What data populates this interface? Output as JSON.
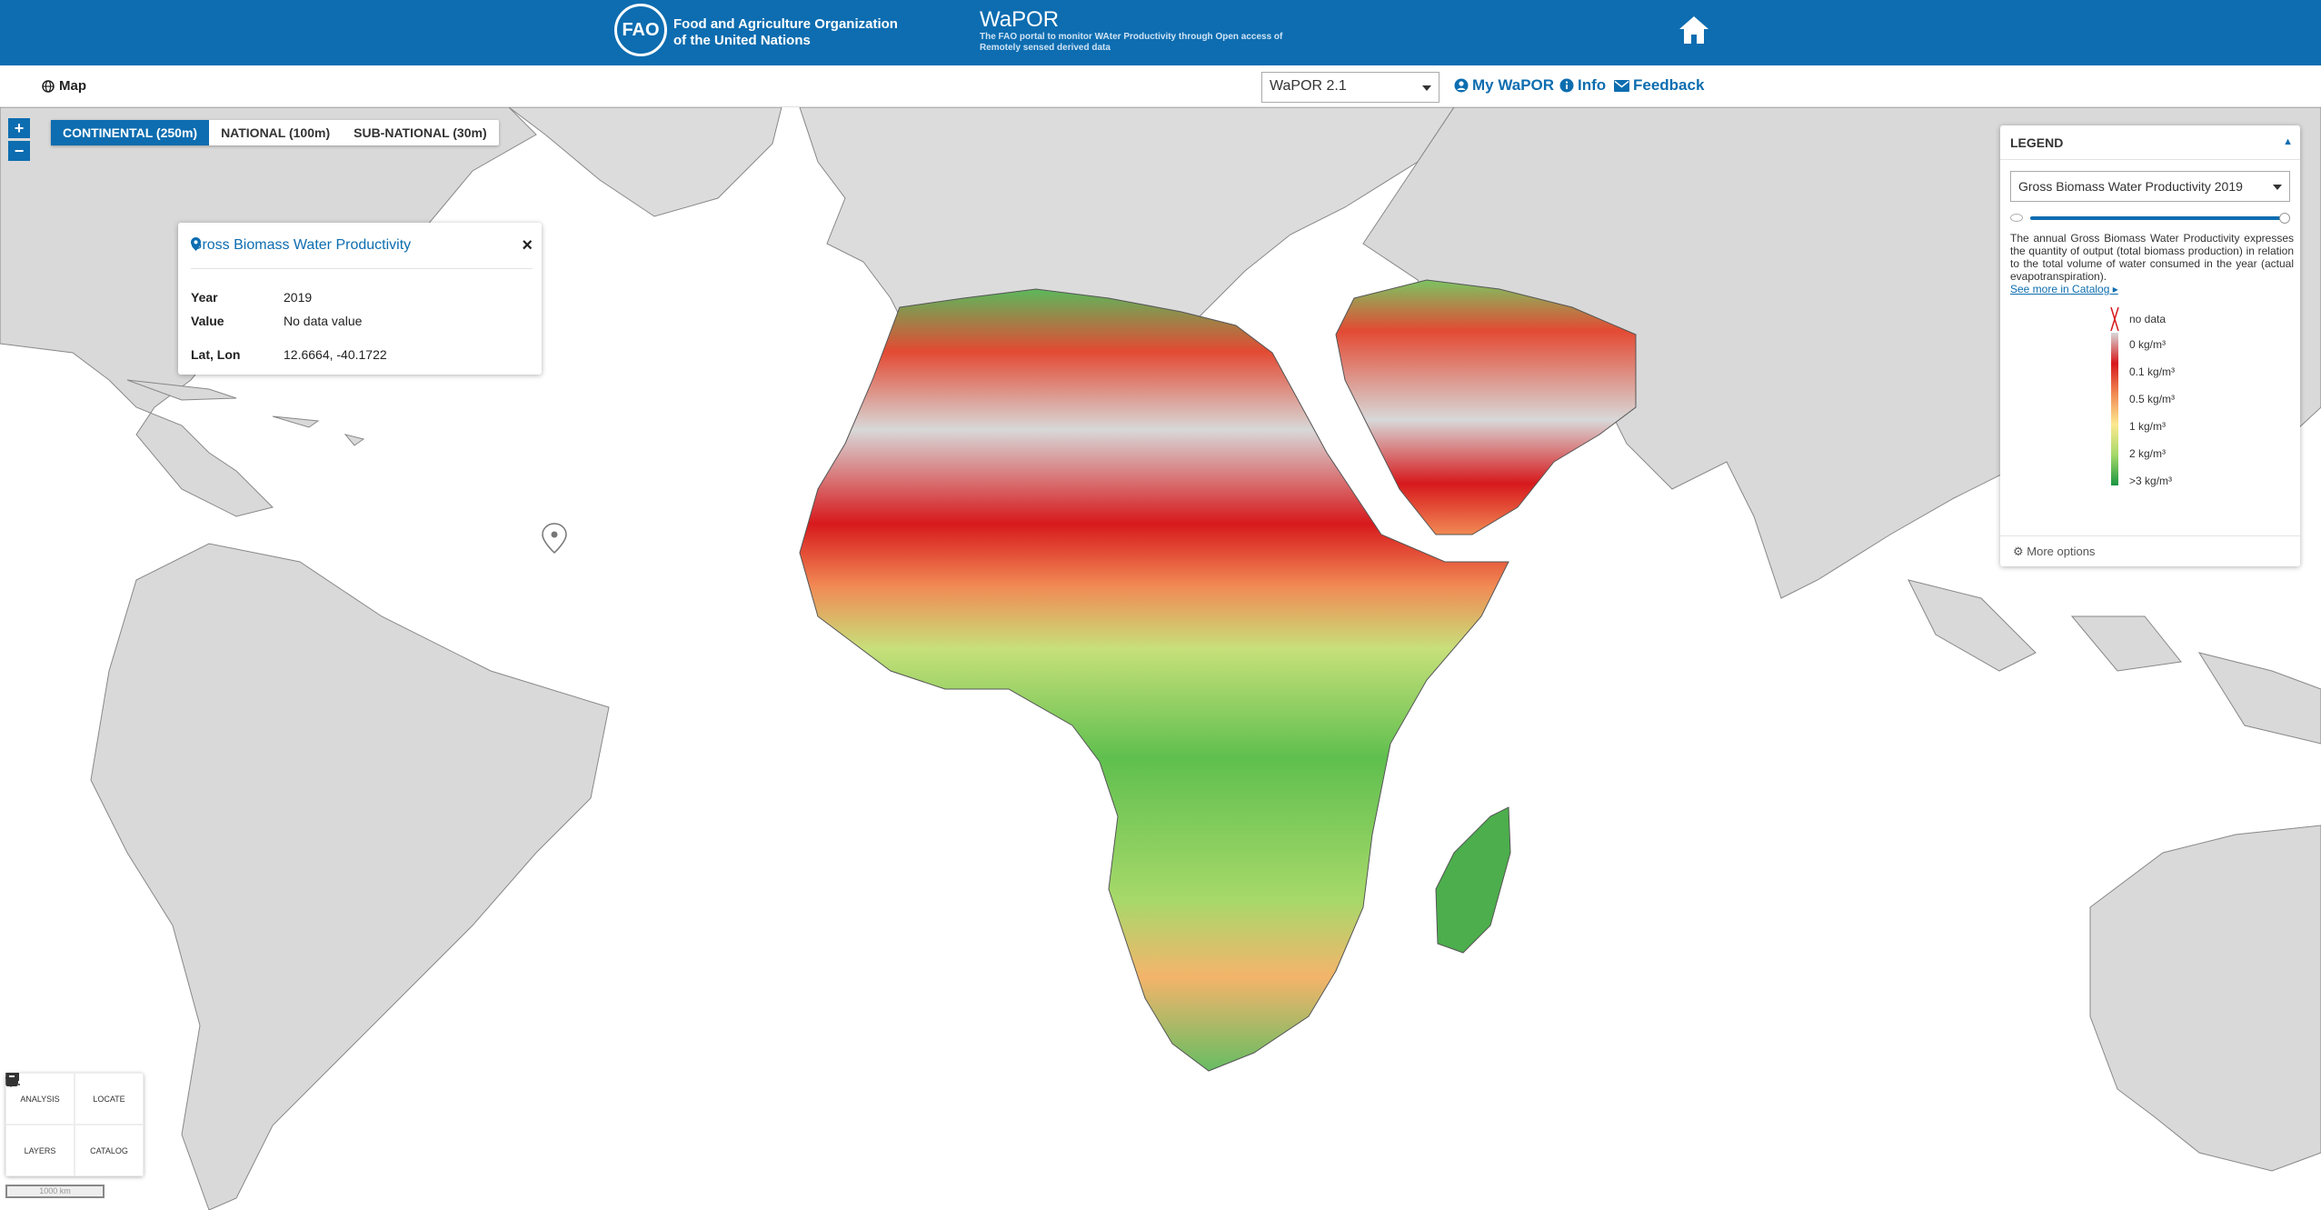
{
  "header": {
    "org_name_line1": "Food and Agriculture Organization",
    "org_name_line2": "of the United Nations",
    "logo_text": "FAO",
    "app_title": "WaPOR",
    "app_subtitle": "The FAO portal to monitor WAter Productivity through Open access of Remotely sensed derived data",
    "brand_color": "#0d6db0"
  },
  "nav": {
    "map_label": "Map",
    "version_value": "WaPOR 2.1",
    "my_wapor": "My WaPOR",
    "info": "Info",
    "feedback": "Feedback"
  },
  "map": {
    "zoom_in": "+",
    "zoom_out": "−",
    "resolution_tabs": [
      {
        "label": "CONTINENTAL (250m)",
        "active": true
      },
      {
        "label": "NATIONAL (100m)",
        "active": false
      },
      {
        "label": "SUB-NATIONAL (30m)",
        "active": false
      }
    ],
    "scale_label": "1000 km"
  },
  "popup": {
    "title": "Gross Biomass Water Productivity",
    "close": "×",
    "rows": [
      {
        "key": "Year",
        "value": "2019"
      },
      {
        "key": "Value",
        "value": "No data value"
      },
      {
        "key": "Lat, Lon",
        "value": "12.6664, -40.1722"
      }
    ]
  },
  "legend": {
    "header": "LEGEND",
    "layer_value": "Gross Biomass Water Productivity 2019",
    "description": "The annual Gross Biomass Water Productivity expresses the quantity of output (total biomass production) in relation to the total volume of water consumed in the year (actual evapotranspiration).",
    "catalog_link": "See more in Catalog",
    "opacity_percent": 100,
    "classes": [
      "no data",
      "0 kg/m³",
      "0.1 kg/m³",
      "0.5 kg/m³",
      "1 kg/m³",
      "2 kg/m³",
      ">3 kg/m³"
    ],
    "ramp_colors": [
      "#d8d8d8",
      "#d7191c",
      "#f18a54",
      "#fde98f",
      "#a6d96a",
      "#1a9641"
    ],
    "more_options": "More options"
  },
  "tools": [
    {
      "label": "ANALYSIS",
      "icon": "bar-chart-icon"
    },
    {
      "label": "LOCATE",
      "icon": "map-pin-icon"
    },
    {
      "label": "LAYERS",
      "icon": "layers-icon"
    },
    {
      "label": "CATALOG",
      "icon": "book-icon"
    }
  ]
}
